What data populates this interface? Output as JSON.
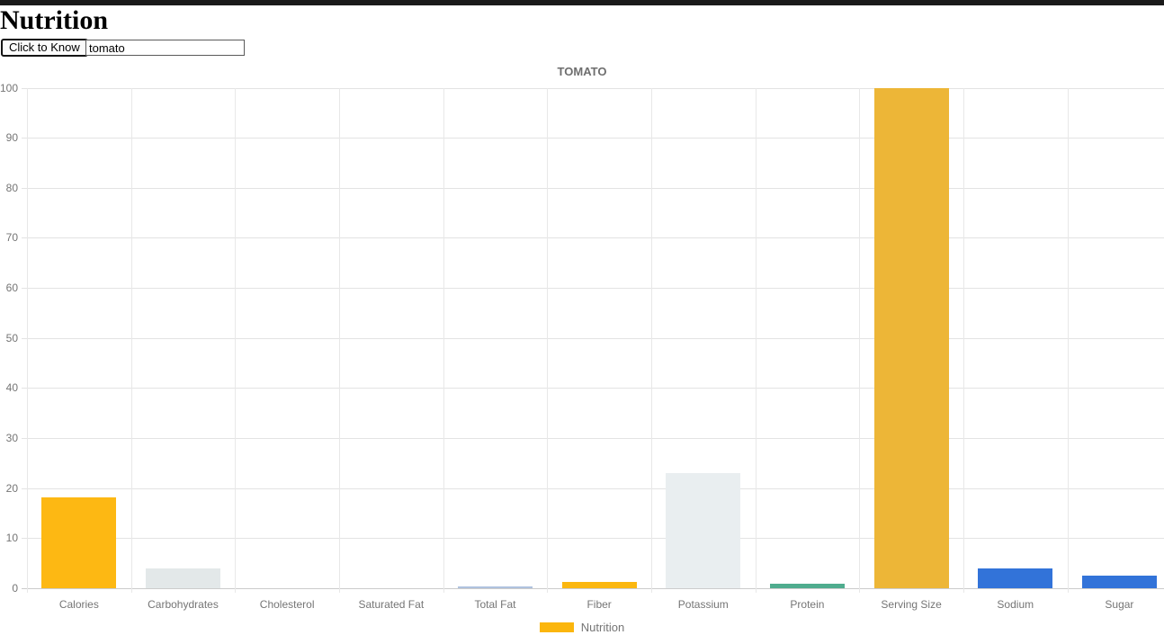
{
  "page": {
    "top_bar_color": "#1a1a1a",
    "background": "#ffffff"
  },
  "header": {
    "title": "Nutrition"
  },
  "controls": {
    "button_label": "Click to Know",
    "input_value": "tomato"
  },
  "chart_data": {
    "type": "bar",
    "title": "TOMATO",
    "categories": [
      "Calories",
      "Carbohydrates",
      "Cholesterol",
      "Saturated Fat",
      "Total Fat",
      "Fiber",
      "Potassium",
      "Protein",
      "Serving Size",
      "Sodium",
      "Sugar"
    ],
    "values": [
      18.2,
      3.9,
      0,
      0,
      0.2,
      1.2,
      23,
      0.9,
      100,
      4,
      2.6
    ],
    "colors": [
      "#FDB813",
      "#E3E8E9",
      null,
      null,
      "#AFC2DE",
      "#FBB70F",
      "#E9EEF0",
      "#4FAC8E",
      "#EDB637",
      "#3273D9",
      "#3273D9"
    ],
    "xlabel": "",
    "ylabel": "",
    "ylim": [
      0,
      100
    ],
    "yticks": [
      0,
      10,
      20,
      30,
      40,
      50,
      60,
      70,
      80,
      90,
      100
    ],
    "grid": true,
    "text_color": "#757575",
    "gridline_color": "#e3e3e3",
    "legend": {
      "label": "Nutrition",
      "color": "#fbb60d",
      "position": "bottom"
    }
  }
}
